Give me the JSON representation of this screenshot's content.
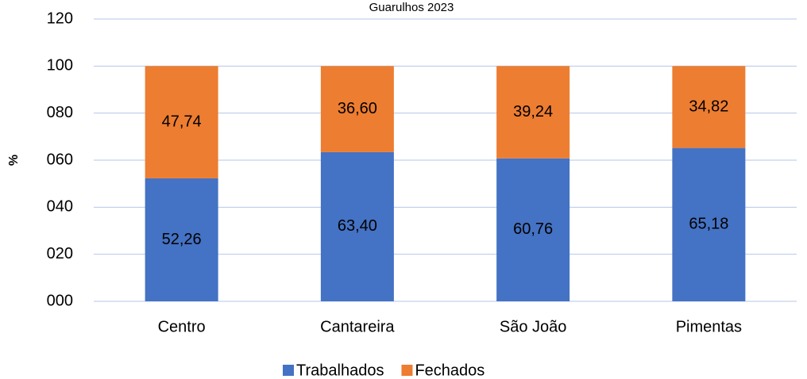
{
  "chart_data": {
    "type": "stacked_bar",
    "title": "Guarulhos 2023",
    "y_label": "%",
    "categories": [
      "Centro",
      "Cantareira",
      "São João",
      "Pimentas"
    ],
    "series": [
      {
        "name": "Trabalhados",
        "color": "#4472c4",
        "values": [
          52.26,
          63.4,
          60.76,
          65.18
        ],
        "value_labels": [
          "52,26",
          "63,40",
          "60,76",
          "65,18"
        ]
      },
      {
        "name": "Fechados",
        "color": "#ed7d31",
        "values": [
          47.74,
          36.6,
          39.24,
          34.82
        ],
        "value_labels": [
          "47,74",
          "36,60",
          "39,24",
          "34,82"
        ]
      }
    ],
    "ylim": [
      0,
      120
    ],
    "yticks": [
      {
        "value": 0,
        "label": "000"
      },
      {
        "value": 20,
        "label": "020"
      },
      {
        "value": 40,
        "label": "040"
      },
      {
        "value": 60,
        "label": "060"
      },
      {
        "value": 80,
        "label": "080"
      },
      100,
      120
    ],
    "grid": true,
    "legend": "bottom"
  }
}
